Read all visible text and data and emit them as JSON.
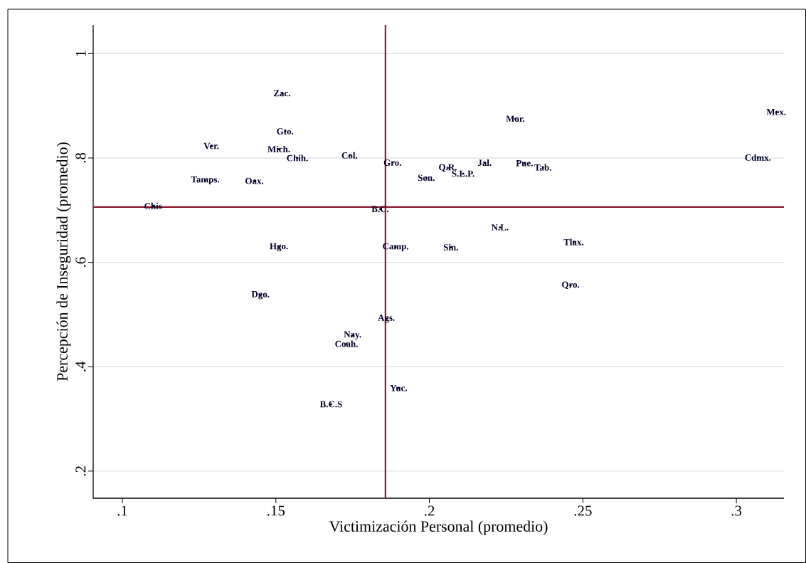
{
  "chart_data": {
    "type": "scatter",
    "xlabel": "Victimización Personal (promedio)",
    "ylabel": "Percepción de Inseguridad (promedio)",
    "x": [
      0.152,
      0.153,
      0.129,
      0.151,
      0.157,
      0.174,
      0.188,
      0.127,
      0.143,
      0.11,
      0.184,
      0.151,
      0.145,
      0.189,
      0.186,
      0.175,
      0.173,
      0.19,
      0.168,
      0.199,
      0.206,
      0.211,
      0.218,
      0.228,
      0.231,
      0.237,
      0.223,
      0.207,
      0.247,
      0.246,
      0.313,
      0.307
    ],
    "values": [
      0.924,
      0.851,
      0.823,
      0.817,
      0.8,
      0.805,
      0.791,
      0.757,
      0.756,
      0.708,
      0.702,
      0.629,
      0.537,
      0.629,
      0.492,
      0.46,
      0.444,
      0.359,
      0.328,
      0.762,
      0.781,
      0.77,
      0.791,
      0.875,
      0.79,
      0.782,
      0.667,
      0.629,
      0.639,
      0.556,
      0.888,
      0.801
    ],
    "value_labels": [
      "Zac.",
      "Gto.",
      "Ver.",
      "Mich.",
      "Chih.",
      "Col.",
      "Gro.",
      "Tamps.",
      "Oax.",
      "Chis",
      "B.C.",
      "Hgo.",
      "Dgo.",
      "Camp.",
      "Ags.",
      "Nay.",
      "Coah.",
      "Yuc.",
      "B.C.S",
      "Son.",
      "Q.R.",
      "S.L.P.",
      "Jal.",
      "Mor.",
      "Pue.",
      "Tab.",
      "N.L.",
      "Sin.",
      "Tlax.",
      "Qro.",
      "Mex.",
      "Cdmx."
    ],
    "marker": "circle",
    "grid": "y",
    "xlim": [
      0.0905,
      0.3155
    ],
    "ylim": [
      0.148,
      1.055
    ],
    "xticks": [
      {
        "value": 0.1,
        "label": ".1"
      },
      {
        "value": 0.15,
        "label": ".15"
      },
      {
        "value": 0.2,
        "label": ".2"
      },
      {
        "value": 0.25,
        "label": ".25"
      },
      {
        "value": 0.3,
        "label": ".3"
      }
    ],
    "yticks": [
      {
        "value": 0.2,
        "label": ".2"
      },
      {
        "value": 0.4,
        "label": ".4"
      },
      {
        "value": 0.6,
        "label": ".6"
      },
      {
        "value": 0.8,
        "label": ".8"
      },
      {
        "value": 1,
        "label": "1"
      }
    ],
    "ref_lines": [
      {
        "axis": "x",
        "value": 0.1857,
        "color": "#8b1a2e"
      },
      {
        "axis": "y",
        "value": 0.706,
        "color": "#8b1a2e"
      }
    ]
  }
}
